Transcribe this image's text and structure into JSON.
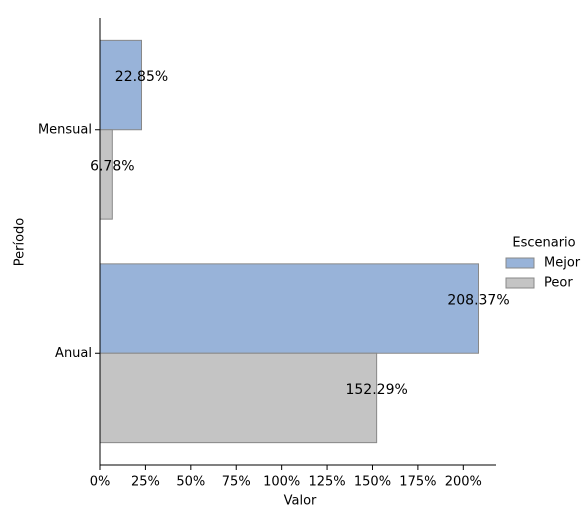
{
  "chart_data": {
    "type": "bar",
    "orientation": "horizontal",
    "xlabel": "Valor",
    "ylabel": "Período",
    "categories": [
      "Mensual",
      "Anual"
    ],
    "series": [
      {
        "name": "Mejor",
        "color": "#98b3d9",
        "values": [
          22.85,
          208.37
        ],
        "value_labels": [
          "22.85%",
          "208.37%"
        ]
      },
      {
        "name": "Peor",
        "color": "#c4c4c4",
        "values": [
          6.78,
          152.29
        ],
        "value_labels": [
          "6.78%",
          "152.29%"
        ]
      }
    ],
    "xlim": [
      0,
      218
    ],
    "xticks": [
      {
        "value": 0,
        "label": "0%"
      },
      {
        "value": 25,
        "label": "25%"
      },
      {
        "value": 50,
        "label": "50%"
      },
      {
        "value": 75,
        "label": "75%"
      },
      {
        "value": 100,
        "label": "100%"
      },
      {
        "value": 125,
        "label": "125%"
      },
      {
        "value": 150,
        "label": "150%"
      },
      {
        "value": 175,
        "label": "175%"
      },
      {
        "value": 200,
        "label": "200%"
      }
    ],
    "legend_title": "Escenario",
    "legend": "right",
    "grid": false
  }
}
